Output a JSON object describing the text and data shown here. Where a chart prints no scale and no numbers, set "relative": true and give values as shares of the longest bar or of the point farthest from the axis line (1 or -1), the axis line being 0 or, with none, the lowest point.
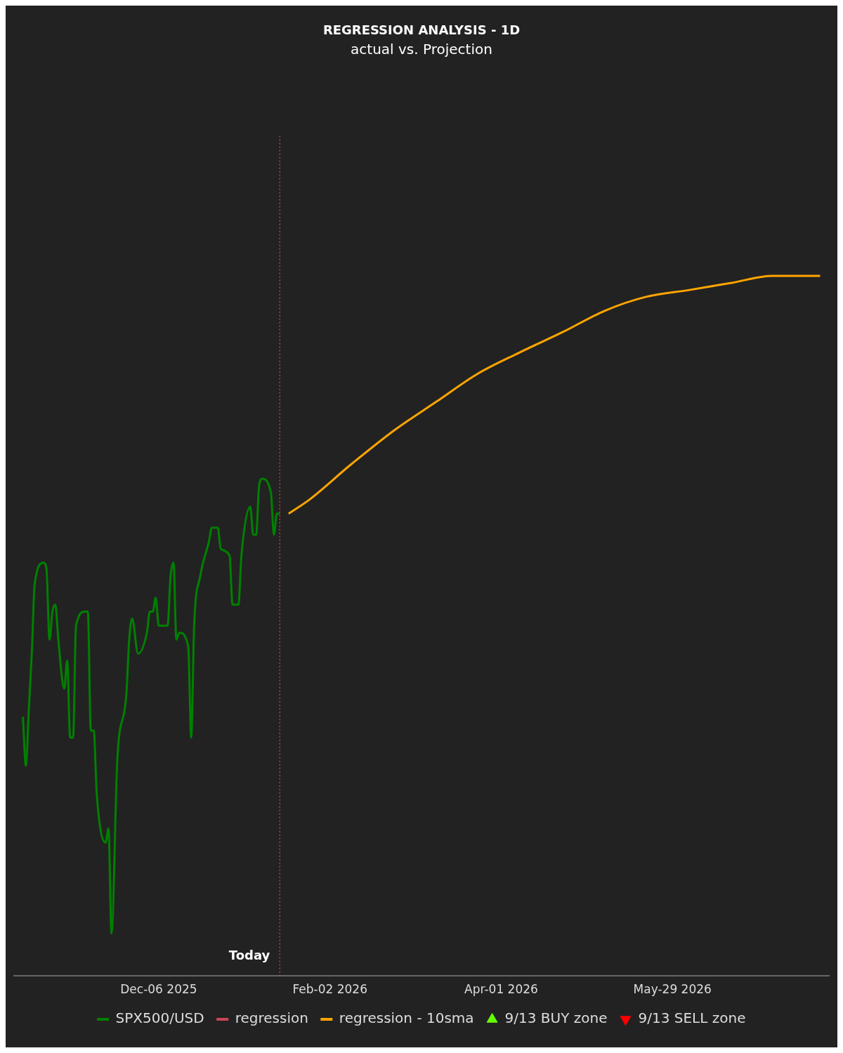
{
  "chart_data": {
    "type": "line",
    "title": "REGRESSION ANALYSIS - 1D",
    "subtitle": "actual vs. Projection",
    "relative": true,
    "xlim": [
      "2025-10-18",
      "2026-07-21"
    ],
    "xticks": [
      {
        "value": "2025-12-06",
        "label": "Dec-06 2025"
      },
      {
        "value": "2026-02-02",
        "label": "Feb-02 2026"
      },
      {
        "value": "2026-04-01",
        "label": "Apr-01 2026"
      },
      {
        "value": "2026-05-29",
        "label": "May-29 2026"
      }
    ],
    "grid": false,
    "legend": "bottom",
    "ref_lines": [
      {
        "axis": "x",
        "value": "2026-01-16",
        "label": "Today",
        "color": "#ff5555",
        "line_style": "dotted"
      }
    ],
    "series": [
      {
        "name": "SPX500/USD",
        "color": "#008000",
        "x": [
          "2025-10-21",
          "2025-10-22",
          "2025-10-23",
          "2025-10-24",
          "2025-10-25",
          "2025-10-28",
          "2025-10-29",
          "2025-10-30",
          "2025-10-31",
          "2025-11-01",
          "2025-11-02",
          "2025-11-04",
          "2025-11-05",
          "2025-11-06",
          "2025-11-07",
          "2025-11-08",
          "2025-11-11",
          "2025-11-12",
          "2025-11-13",
          "2025-11-14",
          "2025-11-15",
          "2025-11-18",
          "2025-11-19",
          "2025-11-20",
          "2025-11-22",
          "2025-11-25",
          "2025-11-26",
          "2025-11-27",
          "2025-11-29",
          "2025-12-02",
          "2025-12-03",
          "2025-12-04",
          "2025-12-05",
          "2025-12-06",
          "2025-12-09",
          "2025-12-10",
          "2025-12-11",
          "2025-12-12",
          "2025-12-13",
          "2025-12-16",
          "2025-12-17",
          "2025-12-18",
          "2025-12-20",
          "2025-12-23",
          "2025-12-24",
          "2025-12-26",
          "2025-12-27",
          "2025-12-30",
          "2025-12-31",
          "2026-01-01",
          "2026-01-02",
          "2026-01-03",
          "2026-01-06",
          "2026-01-07",
          "2026-01-08",
          "2026-01-09",
          "2026-01-10",
          "2026-01-13",
          "2026-01-14",
          "2026-01-15",
          "2026-01-16"
        ],
        "values": [
          0.37,
          0.3,
          0.38,
          0.46,
          0.56,
          0.59,
          0.58,
          0.48,
          0.52,
          0.53,
          0.48,
          0.41,
          0.45,
          0.34,
          0.34,
          0.5,
          0.52,
          0.52,
          0.35,
          0.35,
          0.26,
          0.19,
          0.21,
          0.06,
          0.31,
          0.4,
          0.48,
          0.51,
          0.46,
          0.49,
          0.52,
          0.52,
          0.54,
          0.5,
          0.5,
          0.57,
          0.59,
          0.48,
          0.49,
          0.47,
          0.34,
          0.5,
          0.57,
          0.62,
          0.64,
          0.64,
          0.61,
          0.6,
          0.53,
          0.53,
          0.53,
          0.6,
          0.67,
          0.63,
          0.63,
          0.7,
          0.71,
          0.69,
          0.63,
          0.66,
          0.66
        ]
      },
      {
        "name": "regression",
        "color": "#cc4455"
      },
      {
        "name": "regression - 10sma",
        "color": "#ffa500",
        "x": [
          "2026-01-19",
          "2026-01-26",
          "2026-02-09",
          "2026-02-24",
          "2026-03-10",
          "2026-03-24",
          "2026-04-07",
          "2026-04-22",
          "2026-05-06",
          "2026-05-20",
          "2026-06-04",
          "2026-06-18",
          "2026-07-02",
          "2026-07-18"
        ],
        "values": [
          0.66,
          0.68,
          0.73,
          0.78,
          0.82,
          0.86,
          0.89,
          0.92,
          0.95,
          0.97,
          0.98,
          0.99,
          1.0,
          1.0
        ]
      },
      {
        "name": "9/13 BUY zone",
        "type": "scatter",
        "color": "#66ff00"
      },
      {
        "name": "9/13 SELL zone",
        "type": "scatter",
        "color": "#ff0000"
      }
    ]
  }
}
